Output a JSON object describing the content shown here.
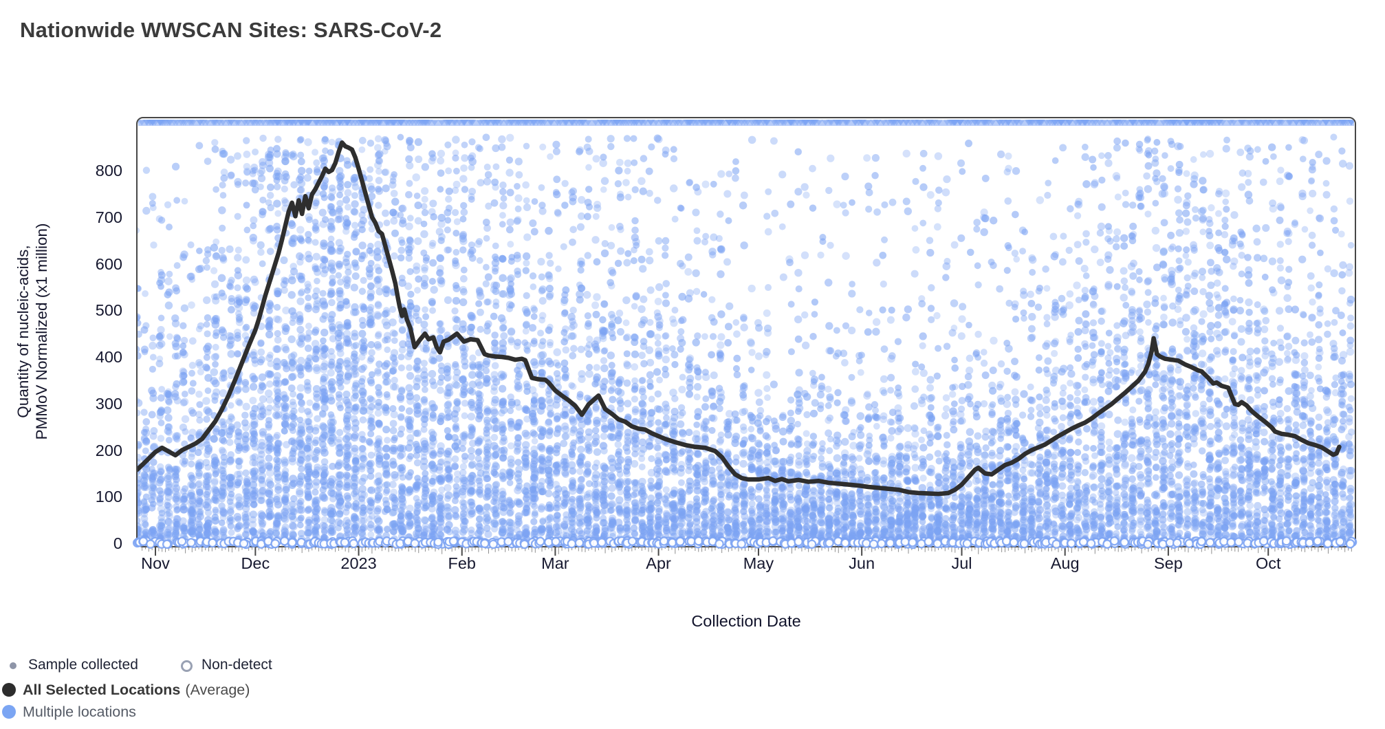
{
  "page": {
    "title": "Nationwide WWSCAN Sites: SARS-CoV-2"
  },
  "chart_data": {
    "type": "scatter",
    "title": "Nationwide WWSCAN Sites: SARS-CoV-2",
    "xlabel": "Collection Date",
    "ylabel_line1": "Quantity of nucleic-acids,",
    "ylabel_line2": "PMMoV Normalized (x1 million)",
    "y_ticks": [
      0,
      100,
      200,
      300,
      400,
      500,
      600,
      700,
      800
    ],
    "ylim": [
      0,
      880
    ],
    "x_ticks": [
      {
        "label": "Nov",
        "day": 0
      },
      {
        "label": "Dec",
        "day": 30
      },
      {
        "label": "2023",
        "day": 61
      },
      {
        "label": "Feb",
        "day": 92
      },
      {
        "label": "Mar",
        "day": 120
      },
      {
        "label": "Apr",
        "day": 151
      },
      {
        "label": "May",
        "day": 181
      },
      {
        "label": "Jun",
        "day": 212
      },
      {
        "label": "Jul",
        "day": 242
      },
      {
        "label": "Aug",
        "day": 273
      },
      {
        "label": "Sep",
        "day": 304
      },
      {
        "label": "Oct",
        "day": 334
      }
    ],
    "x_domain_days": [
      -5.5,
      360
    ],
    "grid": false,
    "legend_position": "bottom-left",
    "average_series": {
      "name": "All Selected Locations (Average)",
      "color": "#2E2E2E",
      "points": [
        [
          -5.5,
          158
        ],
        [
          -4,
          168
        ],
        [
          -2,
          182
        ],
        [
          0,
          196
        ],
        [
          2,
          205
        ],
        [
          4,
          197
        ],
        [
          6,
          189
        ],
        [
          8,
          200
        ],
        [
          10,
          207
        ],
        [
          12,
          214
        ],
        [
          14,
          224
        ],
        [
          16,
          243
        ],
        [
          18,
          262
        ],
        [
          20,
          288
        ],
        [
          22,
          318
        ],
        [
          24,
          352
        ],
        [
          26,
          388
        ],
        [
          28,
          424
        ],
        [
          30,
          458
        ],
        [
          31,
          480
        ],
        [
          33,
          532
        ],
        [
          35,
          578
        ],
        [
          37,
          624
        ],
        [
          38,
          652
        ],
        [
          39,
          682
        ],
        [
          40,
          712
        ],
        [
          41,
          731
        ],
        [
          42,
          702
        ],
        [
          43,
          736
        ],
        [
          44,
          707
        ],
        [
          45,
          745
        ],
        [
          46,
          719
        ],
        [
          47,
          749
        ],
        [
          48,
          760
        ],
        [
          50,
          788
        ],
        [
          51,
          804
        ],
        [
          52,
          797
        ],
        [
          53,
          801
        ],
        [
          54,
          816
        ],
        [
          55,
          840
        ],
        [
          56,
          860
        ],
        [
          57,
          852
        ],
        [
          58,
          849
        ],
        [
          59,
          845
        ],
        [
          60,
          828
        ],
        [
          61,
          804
        ],
        [
          62,
          778
        ],
        [
          63,
          752
        ],
        [
          64,
          726
        ],
        [
          65,
          700
        ],
        [
          66,
          688
        ],
        [
          67,
          670
        ],
        [
          68,
          664
        ],
        [
          69,
          638
        ],
        [
          70,
          612
        ],
        [
          71,
          586
        ],
        [
          72,
          558
        ],
        [
          72.7,
          530
        ],
        [
          73.3,
          508
        ],
        [
          74,
          488
        ],
        [
          74.7,
          502
        ],
        [
          75.5,
          480
        ],
        [
          76.5,
          462
        ],
        [
          77.8,
          421
        ],
        [
          79.3,
          436
        ],
        [
          80.9,
          450
        ],
        [
          82,
          438
        ],
        [
          83.4,
          442
        ],
        [
          84.4,
          421
        ],
        [
          85.4,
          410
        ],
        [
          86.5,
          433
        ],
        [
          88,
          437
        ],
        [
          90.5,
          450
        ],
        [
          92.6,
          433
        ],
        [
          94.6,
          438
        ],
        [
          96.7,
          436
        ],
        [
          98.8,
          406
        ],
        [
          100,
          403
        ],
        [
          102,
          401
        ],
        [
          104,
          400
        ],
        [
          106,
          398
        ],
        [
          108,
          394
        ],
        [
          110,
          396
        ],
        [
          111,
          393
        ],
        [
          113,
          355
        ],
        [
          115,
          352
        ],
        [
          117,
          351
        ],
        [
          118,
          345
        ],
        [
          120,
          328
        ],
        [
          122,
          317
        ],
        [
          124,
          307
        ],
        [
          126,
          295
        ],
        [
          128,
          276
        ],
        [
          130,
          298
        ],
        [
          133,
          317
        ],
        [
          135,
          288
        ],
        [
          137,
          278
        ],
        [
          139,
          266
        ],
        [
          141,
          261
        ],
        [
          143,
          251
        ],
        [
          145,
          246
        ],
        [
          147,
          244
        ],
        [
          149,
          236
        ],
        [
          153,
          224
        ],
        [
          156,
          217
        ],
        [
          159,
          211
        ],
        [
          162,
          207
        ],
        [
          165,
          205
        ],
        [
          168,
          198
        ],
        [
          170,
          185
        ],
        [
          172,
          165
        ],
        [
          174,
          148
        ],
        [
          176,
          140
        ],
        [
          178,
          137
        ],
        [
          181,
          137
        ],
        [
          184,
          140
        ],
        [
          186,
          134
        ],
        [
          188,
          138
        ],
        [
          190,
          133
        ],
        [
          193,
          136
        ],
        [
          196,
          132
        ],
        [
          199,
          134
        ],
        [
          202,
          130
        ],
        [
          205,
          128
        ],
        [
          208,
          126
        ],
        [
          211,
          124
        ],
        [
          214,
          121
        ],
        [
          217,
          119
        ],
        [
          220,
          117
        ],
        [
          223,
          115
        ],
        [
          226,
          110
        ],
        [
          229,
          108
        ],
        [
          232,
          107
        ],
        [
          235,
          106
        ],
        [
          238,
          108
        ],
        [
          240,
          115
        ],
        [
          242,
          126
        ],
        [
          244,
          142
        ],
        [
          246,
          158
        ],
        [
          247,
          162
        ],
        [
          249,
          150
        ],
        [
          251,
          148
        ],
        [
          253,
          158
        ],
        [
          255,
          168
        ],
        [
          257,
          173
        ],
        [
          259,
          181
        ],
        [
          261,
          192
        ],
        [
          263,
          200
        ],
        [
          265,
          206
        ],
        [
          267,
          212
        ],
        [
          269,
          221
        ],
        [
          271,
          230
        ],
        [
          273,
          238
        ],
        [
          275,
          246
        ],
        [
          277,
          253
        ],
        [
          279,
          259
        ],
        [
          281,
          268
        ],
        [
          283,
          279
        ],
        [
          285,
          289
        ],
        [
          287,
          299
        ],
        [
          289,
          311
        ],
        [
          291,
          323
        ],
        [
          293,
          336
        ],
        [
          295,
          349
        ],
        [
          297,
          368
        ],
        [
          298,
          385
        ],
        [
          299,
          412
        ],
        [
          299.6,
          440
        ],
        [
          300.6,
          406
        ],
        [
          301.5,
          401
        ],
        [
          303,
          396
        ],
        [
          305,
          394
        ],
        [
          307,
          392
        ],
        [
          309,
          384
        ],
        [
          311,
          378
        ],
        [
          313,
          371
        ],
        [
          314,
          369
        ],
        [
          316,
          355
        ],
        [
          317.5,
          343
        ],
        [
          318.5,
          345
        ],
        [
          320,
          338
        ],
        [
          322,
          334
        ],
        [
          323,
          316
        ],
        [
          324,
          299
        ],
        [
          325,
          297
        ],
        [
          326,
          303
        ],
        [
          327.5,
          296
        ],
        [
          329,
          284
        ],
        [
          331,
          272
        ],
        [
          333,
          261
        ],
        [
          335,
          249
        ],
        [
          336,
          240
        ],
        [
          338,
          235
        ],
        [
          340,
          233
        ],
        [
          342,
          230
        ],
        [
          344,
          222
        ],
        [
          346,
          215
        ],
        [
          348,
          211
        ],
        [
          350,
          206
        ],
        [
          352,
          197
        ],
        [
          353.5,
          190
        ],
        [
          354.5,
          193
        ],
        [
          355.3,
          207
        ]
      ]
    },
    "scatter_render_params": {
      "name": "Multiple locations",
      "point_color": "#7CA3F3",
      "seed": 20231025,
      "column_step_days": 2.3333,
      "points_per_column_base": 50,
      "points_per_column_avg_factor": 0.052,
      "outlier_fraction": 0.13,
      "outlier_value_max": 1150,
      "nondetects_per_column": 3,
      "clip_value": 872
    }
  },
  "legend": {
    "sample_collected": "Sample collected",
    "non_detect": "Non-detect",
    "all_selected": "All Selected Locations",
    "average_suffix": "(Average)",
    "multiple_locations": "Multiple locations"
  },
  "colors": {
    "point": "#7CA3F3",
    "average_line": "#2E2E2E",
    "border": "#474747",
    "tick": "#6a6a6a",
    "text_dark": "#16182f"
  }
}
